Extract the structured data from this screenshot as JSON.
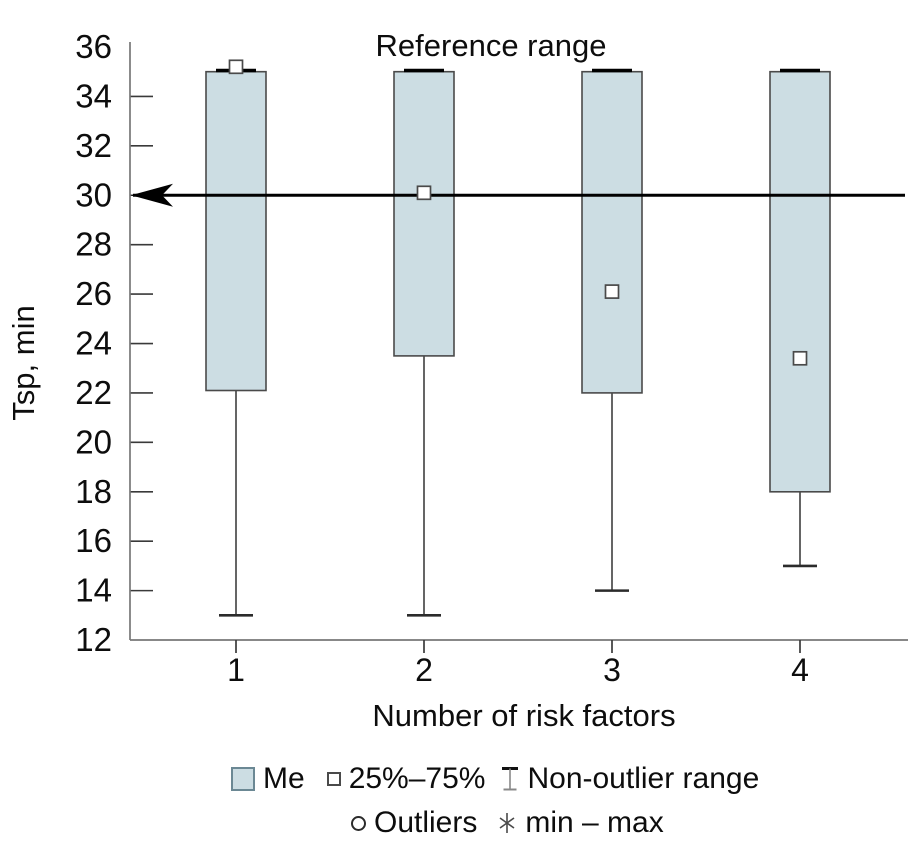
{
  "chart_data": {
    "type": "box",
    "title": "",
    "xlabel": "Number of risk factors",
    "ylabel": "Tsp, min",
    "ylim": [
      12,
      36
    ],
    "y_ticks": [
      36,
      34,
      32,
      30,
      28,
      26,
      24,
      22,
      20,
      18,
      16,
      14,
      12
    ],
    "categories": [
      "1",
      "2",
      "3",
      "4"
    ],
    "grid": "off",
    "reference_line": {
      "y": 30,
      "label": "Reference range",
      "style": "left-arrow"
    },
    "boxes": [
      {
        "category": "1",
        "box_top": 35,
        "box_bottom": 22.1,
        "point": 35.2,
        "whisker_bottom": 13,
        "whisker_top": 35
      },
      {
        "category": "2",
        "box_top": 35,
        "box_bottom": 23.5,
        "point": 30.1,
        "whisker_bottom": 13,
        "whisker_top": 35
      },
      {
        "category": "3",
        "box_top": 35,
        "box_bottom": 22.0,
        "point": 26.1,
        "whisker_bottom": 14,
        "whisker_top": 35
      },
      {
        "category": "4",
        "box_top": 35,
        "box_bottom": 18.0,
        "point": 23.4,
        "whisker_bottom": 15,
        "whisker_top": 35
      }
    ],
    "outliers": [],
    "legend": {
      "position": "bottom-center",
      "row1": [
        {
          "symbol": "box-swatch",
          "label": "Me"
        },
        {
          "symbol": "square-marker",
          "label": "25%–75%"
        },
        {
          "symbol": "whisker-glyph",
          "label": "Non-outlier range"
        }
      ],
      "row2": [
        {
          "symbol": "circle-marker",
          "label": "Outliers"
        },
        {
          "symbol": "asterisk-marker",
          "label": "min – max"
        }
      ]
    },
    "colors": {
      "box_fill": "#ccdde3",
      "box_border": "#4a4a4a",
      "whisker": "#4a4a4a",
      "cap_top": "#000000",
      "cap_bottom": "#2b2b2b",
      "reference_line": "#000000",
      "axis": "#777777",
      "text": "#0d0d0d"
    }
  }
}
